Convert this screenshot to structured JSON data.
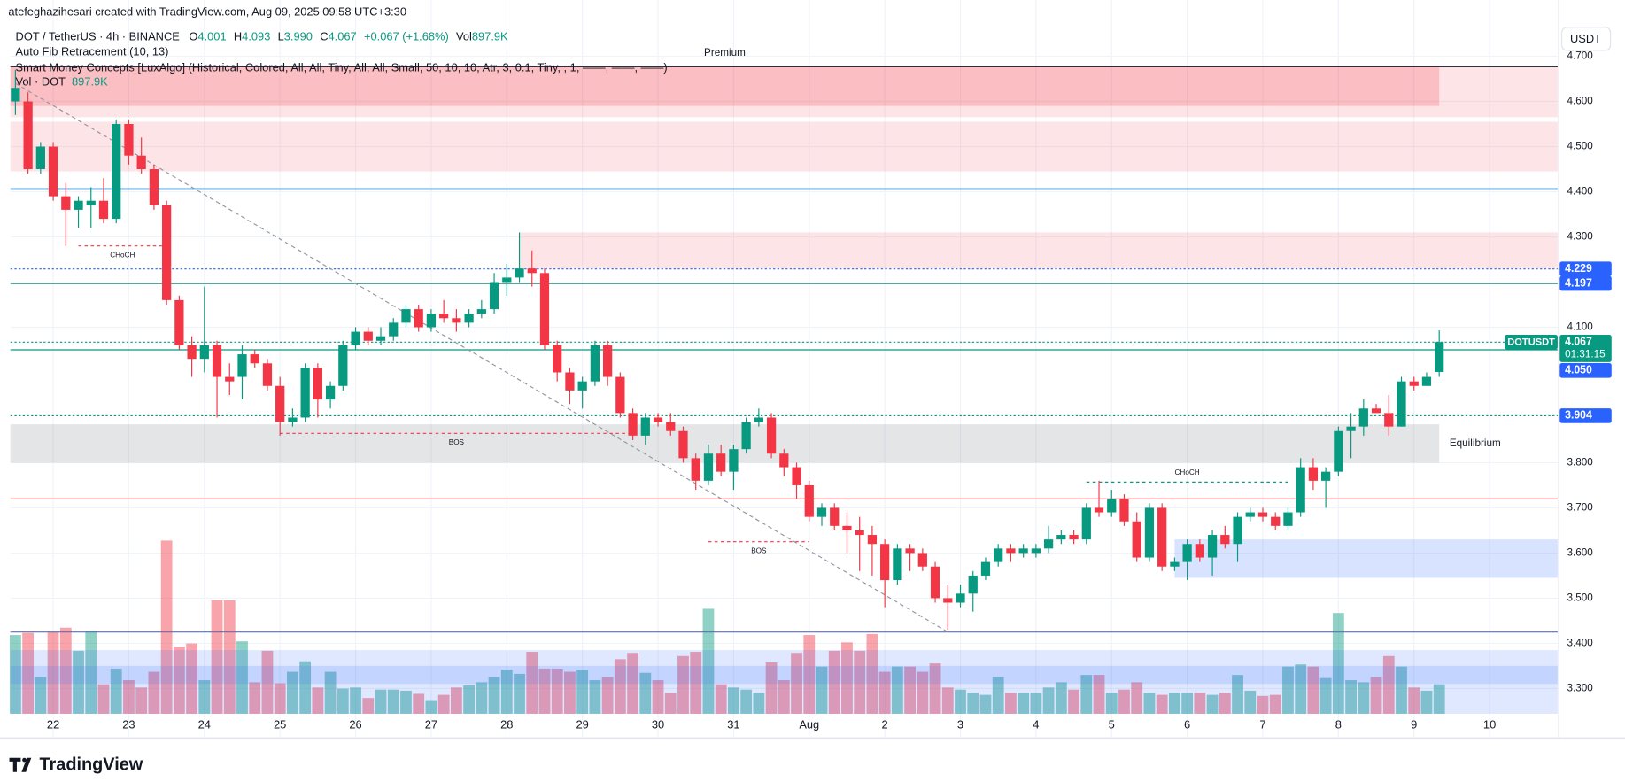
{
  "header": {
    "credit": "atefeghazihesari created with TradingView.com, Aug 09, 2025 09:58 UTC+3:30",
    "symbol": "DOT / TetherUS · 4h · BINANCE",
    "ohlc": [
      {
        "key": "O",
        "value": "4.001"
      },
      {
        "key": "H",
        "value": "4.093"
      },
      {
        "key": "L",
        "value": "3.990"
      },
      {
        "key": "C",
        "value": "4.067"
      }
    ],
    "change": "+0.067 (+1.68%)",
    "vol_key": "Vol",
    "vol_value": "897.9K"
  },
  "indicators": [
    "Auto Fib Retracement (10, 13)",
    "Smart Money Concepts [LuxAlgo] (Historical, Colored, All, All, Tiny, All, All, Small, 50, 10, 10, Atr, 3, 0.1, Tiny, , 1, ——, ——, ——)"
  ],
  "vol_indicator": {
    "name": "Vol · DOT",
    "value": "897.9K"
  },
  "currency_button": "USDT",
  "logo": "TradingView",
  "chart_data": {
    "type": "candlestick",
    "up_color": "#089981",
    "down_color": "#f23645",
    "grid": true,
    "xlim": [
      -0.4,
      122.4
    ],
    "ylim": [
      3.244,
      4.72
    ],
    "xticks": [
      {
        "value": 3,
        "label": "22"
      },
      {
        "value": 9,
        "label": "23"
      },
      {
        "value": 15,
        "label": "24"
      },
      {
        "value": 21,
        "label": "25"
      },
      {
        "value": 27,
        "label": "26"
      },
      {
        "value": 33,
        "label": "27"
      },
      {
        "value": 39,
        "label": "28"
      },
      {
        "value": 45,
        "label": "29"
      },
      {
        "value": 51,
        "label": "30"
      },
      {
        "value": 57,
        "label": "31"
      },
      {
        "value": 63,
        "label": "Aug"
      },
      {
        "value": 69,
        "label": "2"
      },
      {
        "value": 75,
        "label": "3"
      },
      {
        "value": 81,
        "label": "4"
      },
      {
        "value": 87,
        "label": "5"
      },
      {
        "value": 93,
        "label": "6"
      },
      {
        "value": 99,
        "label": "7"
      },
      {
        "value": 105,
        "label": "8"
      },
      {
        "value": 111,
        "label": "9"
      },
      {
        "value": 117,
        "label": "10"
      }
    ],
    "yticks": [
      {
        "value": 3.3,
        "label": "3.300"
      },
      {
        "value": 3.4,
        "label": "3.400"
      },
      {
        "value": 3.5,
        "label": "3.500"
      },
      {
        "value": 3.6,
        "label": "3.600"
      },
      {
        "value": 3.7,
        "label": "3.700"
      },
      {
        "value": 3.8,
        "label": "3.800"
      },
      {
        "value": 4.1,
        "label": "4.100"
      },
      {
        "value": 4.3,
        "label": "4.300"
      },
      {
        "value": 4.4,
        "label": "4.400"
      },
      {
        "value": 4.5,
        "label": "4.500"
      },
      {
        "value": 4.6,
        "label": "4.600"
      },
      {
        "value": 4.7,
        "label": "4.700"
      }
    ],
    "open": [
      4.6,
      4.6,
      4.45,
      4.5,
      4.39,
      4.36,
      4.37,
      4.38,
      4.34,
      4.55,
      4.48,
      4.45,
      4.37,
      4.16,
      4.06,
      4.03,
      4.06,
      3.99,
      3.99,
      4.04,
      4.02,
      3.97,
      3.89,
      3.9,
      4.01,
      3.94,
      3.97,
      4.06,
      4.09,
      4.07,
      4.08,
      4.11,
      4.14,
      4.1,
      4.13,
      4.12,
      4.11,
      4.13,
      4.14,
      4.2,
      4.21,
      4.23,
      4.22,
      4.06,
      4.0,
      3.96,
      3.98,
      4.06,
      3.99,
      3.91,
      3.86,
      3.9,
      3.89,
      3.87,
      3.81,
      3.76,
      3.82,
      3.78,
      3.83,
      3.89,
      3.9,
      3.82,
      3.79,
      3.75,
      3.68,
      3.7,
      3.66,
      3.65,
      3.64,
      3.62,
      3.54,
      3.61,
      3.6,
      3.57,
      3.5,
      3.49,
      3.51,
      3.55,
      3.58,
      3.61,
      3.6,
      3.6,
      3.61,
      3.63,
      3.64,
      3.63,
      3.7,
      3.69,
      3.72,
      3.67,
      3.59,
      3.7,
      3.57,
      3.58,
      3.62,
      3.59,
      3.64,
      3.62,
      3.68,
      3.69,
      3.68,
      3.66,
      3.69,
      3.79,
      3.76,
      3.78,
      3.87,
      3.88,
      3.92,
      3.91,
      3.88,
      3.98,
      3.97,
      4.001
    ],
    "high": [
      4.67,
      4.62,
      4.51,
      4.51,
      4.42,
      4.39,
      4.41,
      4.43,
      4.56,
      4.56,
      4.52,
      4.46,
      4.38,
      4.17,
      4.08,
      4.19,
      4.07,
      4.02,
      4.06,
      4.05,
      4.03,
      3.99,
      3.92,
      4.02,
      4.02,
      3.98,
      4.07,
      4.1,
      4.1,
      4.1,
      4.12,
      4.15,
      4.15,
      4.14,
      4.16,
      4.14,
      4.14,
      4.16,
      4.22,
      4.24,
      4.31,
      4.27,
      4.23,
      4.07,
      4.01,
      3.99,
      4.07,
      4.07,
      4.0,
      3.92,
      3.91,
      3.91,
      3.91,
      3.88,
      3.82,
      3.84,
      3.84,
      3.84,
      3.9,
      3.92,
      3.91,
      3.83,
      3.8,
      3.76,
      3.71,
      3.71,
      3.69,
      3.68,
      3.66,
      3.63,
      3.62,
      3.62,
      3.61,
      3.58,
      3.53,
      3.53,
      3.56,
      3.59,
      3.62,
      3.62,
      3.62,
      3.62,
      3.66,
      3.65,
      3.65,
      3.71,
      3.76,
      3.74,
      3.73,
      3.69,
      3.71,
      3.71,
      3.59,
      3.63,
      3.63,
      3.65,
      3.66,
      3.69,
      3.7,
      3.7,
      3.69,
      3.7,
      3.81,
      3.81,
      3.79,
      3.88,
      3.91,
      3.94,
      3.93,
      3.95,
      3.99,
      3.99,
      4.0,
      4.093
    ],
    "low": [
      4.57,
      4.44,
      4.44,
      4.38,
      4.28,
      4.32,
      4.32,
      4.33,
      4.33,
      4.46,
      4.44,
      4.36,
      4.15,
      4.05,
      3.99,
      4.0,
      3.9,
      3.95,
      3.94,
      4.01,
      3.96,
      3.86,
      3.88,
      3.89,
      3.9,
      3.92,
      3.96,
      4.05,
      4.06,
      4.06,
      4.07,
      4.1,
      4.09,
      4.09,
      4.11,
      4.09,
      4.1,
      4.12,
      4.13,
      4.17,
      4.2,
      4.19,
      4.05,
      3.98,
      3.93,
      3.92,
      3.97,
      3.97,
      3.9,
      3.85,
      3.84,
      3.88,
      3.86,
      3.8,
      3.74,
      3.75,
      3.77,
      3.74,
      3.82,
      3.88,
      3.81,
      3.77,
      3.72,
      3.67,
      3.66,
      3.65,
      3.6,
      3.56,
      3.55,
      3.48,
      3.53,
      3.56,
      3.56,
      3.49,
      3.43,
      3.48,
      3.47,
      3.54,
      3.57,
      3.58,
      3.59,
      3.59,
      3.6,
      3.62,
      3.62,
      3.62,
      3.68,
      3.68,
      3.66,
      3.58,
      3.58,
      3.56,
      3.56,
      3.54,
      3.58,
      3.55,
      3.61,
      3.58,
      3.67,
      3.67,
      3.65,
      3.65,
      3.68,
      3.74,
      3.7,
      3.77,
      3.81,
      3.86,
      3.91,
      3.86,
      3.88,
      3.96,
      3.97,
      3.99
    ],
    "close": [
      4.63,
      4.45,
      4.5,
      4.39,
      4.36,
      4.38,
      4.38,
      4.34,
      4.55,
      4.48,
      4.45,
      4.37,
      4.16,
      4.06,
      4.03,
      4.06,
      3.99,
      3.98,
      4.04,
      4.02,
      3.97,
      3.89,
      3.9,
      4.01,
      3.94,
      3.97,
      4.06,
      4.09,
      4.07,
      4.08,
      4.11,
      4.14,
      4.1,
      4.13,
      4.12,
      4.11,
      4.13,
      4.14,
      4.2,
      4.21,
      4.23,
      4.22,
      4.06,
      4.0,
      3.96,
      3.98,
      4.06,
      3.99,
      3.91,
      3.86,
      3.9,
      3.89,
      3.87,
      3.81,
      3.76,
      3.82,
      3.78,
      3.83,
      3.89,
      3.9,
      3.82,
      3.79,
      3.75,
      3.68,
      3.7,
      3.66,
      3.65,
      3.64,
      3.62,
      3.54,
      3.61,
      3.6,
      3.57,
      3.5,
      3.49,
      3.51,
      3.55,
      3.58,
      3.61,
      3.6,
      3.61,
      3.61,
      3.63,
      3.64,
      3.63,
      3.7,
      3.69,
      3.72,
      3.67,
      3.59,
      3.7,
      3.57,
      3.58,
      3.62,
      3.59,
      3.64,
      3.62,
      3.68,
      3.69,
      3.68,
      3.66,
      3.69,
      3.79,
      3.76,
      3.78,
      3.87,
      3.88,
      3.92,
      3.91,
      3.88,
      3.98,
      3.97,
      3.99,
      4.067
    ],
    "volume": {
      "values": [
        2400,
        2464,
        1120,
        2496,
        2624,
        1920,
        2528,
        896,
        1376,
        1024,
        800,
        1280,
        5280,
        2048,
        2144,
        1024,
        3456,
        3456,
        2208,
        960,
        1920,
        928,
        1280,
        1600,
        800,
        1280,
        768,
        800,
        480,
        736,
        736,
        704,
        608,
        416,
        576,
        800,
        864,
        960,
        1120,
        1344,
        1216,
        1888,
        1376,
        1376,
        1280,
        1344,
        1024,
        1120,
        1664,
        1856,
        1248,
        1024,
        640,
        1760,
        1888,
        3200,
        896,
        800,
        736,
        640,
        1568,
        1024,
        1856,
        2400,
        1440,
        1920,
        2176,
        1920,
        2432,
        1280,
        1440,
        1440,
        1280,
        1536,
        800,
        736,
        640,
        576,
        1120,
        640,
        640,
        640,
        800,
        960,
        736,
        1184,
        1184,
        640,
        736,
        960,
        640,
        576,
        640,
        640,
        640,
        576,
        640,
        1184,
        704,
        544,
        576,
        1440,
        1504,
        1440,
        1088,
        3072,
        1024,
        960,
        1120,
        1760,
        1440,
        800,
        704,
        897.9
      ]
    },
    "zones": [
      {
        "price": [
          4.677,
          4.565
        ],
        "x": [
          -0.4,
          122.4
        ],
        "color": "rgba(242,54,69,0.13)"
      },
      {
        "price": [
          4.677,
          4.59
        ],
        "x": [
          -0.4,
          113
        ],
        "color": "rgba(242,54,69,0.22)",
        "label": "Premium",
        "label_at": "top",
        "label_color": "#f23645"
      },
      {
        "price": [
          4.555,
          4.445
        ],
        "x": [
          -0.4,
          122.4
        ],
        "color": "rgba(242,54,69,0.13)"
      },
      {
        "price": [
          4.31,
          4.23
        ],
        "x": [
          40,
          122.4
        ],
        "color": "rgba(242,54,69,0.13)"
      },
      {
        "price": [
          3.885,
          3.8
        ],
        "x": [
          -0.4,
          113
        ],
        "color": "rgba(120,123,134,0.2)",
        "label": "Equilibrium",
        "label_at": "right",
        "label_color": "#9598a1"
      },
      {
        "price": [
          3.63,
          3.545
        ],
        "x": [
          92,
          122.4
        ],
        "color": "rgba(41,98,255,0.18)"
      },
      {
        "price": [
          3.385,
          3.244
        ],
        "x": [
          -0.4,
          122.4
        ],
        "color": "rgba(41,98,255,0.15)"
      },
      {
        "price": [
          3.35,
          3.31
        ],
        "x": [
          -0.4,
          122.4
        ],
        "color": "rgba(41,98,255,0.15)"
      }
    ],
    "levels": [
      {
        "value": 4.677,
        "color": "#131722",
        "style": "solid"
      },
      {
        "value": 4.407,
        "color": "#64b5f6",
        "style": "solid"
      },
      {
        "value": 4.229,
        "color": "#2962ff",
        "style": "dotted"
      },
      {
        "value": 4.197,
        "color": "#00695c",
        "style": "solid"
      },
      {
        "value": 4.067,
        "color": "#089981",
        "style": "dotted"
      },
      {
        "value": 4.05,
        "color": "#089981",
        "style": "solid"
      },
      {
        "value": 3.904,
        "color": "#089981",
        "style": "dotted"
      },
      {
        "value": 3.72,
        "color": "#f77c80",
        "style": "solid"
      },
      {
        "value": 3.425,
        "color": "#5c6bc0",
        "style": "solid"
      }
    ],
    "fib_trend": {
      "from": {
        "x": 0,
        "y": 4.64
      },
      "to": {
        "x": 74,
        "y": 3.425
      },
      "color": "#9598a1"
    },
    "structures": [
      {
        "text": "CHoCH",
        "price": 4.28,
        "x": [
          5,
          12
        ],
        "color": "#f23645",
        "text_side": "below"
      },
      {
        "text": "BOS",
        "price": 3.865,
        "x": [
          21,
          49
        ],
        "color": "#f23645",
        "text_side": "below"
      },
      {
        "text": "BOS",
        "price": 3.625,
        "x": [
          55,
          63
        ],
        "color": "#f23645",
        "text_side": "below"
      },
      {
        "text": "CHoCH",
        "price": 3.757,
        "x": [
          85,
          101
        ],
        "color": "#089981",
        "text_side": "above"
      }
    ],
    "price_tags": [
      {
        "value": 4.229,
        "label": "4.229",
        "color": "#2962ff"
      },
      {
        "value": 4.197,
        "label": "4.197",
        "color": "#2962ff"
      },
      {
        "value": 4.05,
        "label": "4.050",
        "color": "#2962ff"
      },
      {
        "value": 3.904,
        "label": "3.904",
        "color": "#2962ff"
      }
    ],
    "last_price": {
      "symbol": "DOTUSDT",
      "value": 4.067,
      "label": "4.067",
      "countdown": "01:31:15",
      "color": "#089981"
    }
  }
}
